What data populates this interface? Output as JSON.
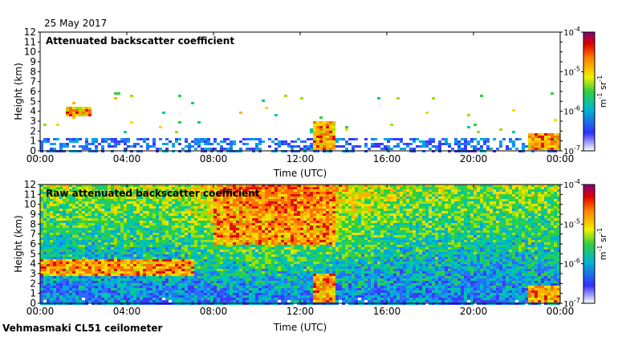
{
  "header": {
    "date": "25 May 2017"
  },
  "footer": {
    "instrument": "Vehmasmaki CL51 ceilometer"
  },
  "chart_data": [
    {
      "type": "heatmap",
      "title": "Attenuated backscatter coefficient",
      "xlabel": "Time (UTC)",
      "ylabel": "Height (km)",
      "xlim": [
        0,
        24
      ],
      "ylim": [
        0,
        12
      ],
      "x_ticks": [
        "00:00",
        "04:00",
        "08:00",
        "12:00",
        "16:00",
        "20:00",
        "00:00"
      ],
      "y_ticks": [
        0,
        1,
        2,
        3,
        4,
        5,
        6,
        7,
        8,
        9,
        10,
        11,
        12
      ],
      "colorbar": {
        "label_base": "m",
        "label_exp1": "-1",
        "label_mid": " sr",
        "label_exp2": "-1",
        "ticks": [
          {
            "base": "10",
            "exp": "-4"
          },
          {
            "base": "10",
            "exp": "-5"
          },
          {
            "base": "10",
            "exp": "-6"
          },
          {
            "base": "10",
            "exp": "-7"
          }
        ],
        "range": [
          1e-07,
          0.0001
        ],
        "scale": "log"
      },
      "features": [
        {
          "name": "boundary-layer",
          "t": [
            0,
            24
          ],
          "h": [
            0,
            1.5
          ],
          "level": "low"
        },
        {
          "name": "cloud-layer-early",
          "t": [
            1.1,
            2.3
          ],
          "h": [
            3.5,
            4.6
          ],
          "level": "high"
        },
        {
          "name": "convective-cloud-noon",
          "t": [
            12.5,
            13.5
          ],
          "h": [
            0.3,
            3.2
          ],
          "level": "high"
        },
        {
          "name": "evening-clouds",
          "t": [
            22.5,
            24
          ],
          "h": [
            0.1,
            1.8
          ],
          "level": "high"
        }
      ]
    },
    {
      "type": "heatmap",
      "title": "Raw attenuated backscatter coefficient",
      "xlabel": "Time (UTC)",
      "ylabel": "Height (km)",
      "xlim": [
        0,
        24
      ],
      "ylim": [
        0,
        12
      ],
      "x_ticks": [
        "00:00",
        "04:00",
        "08:00",
        "12:00",
        "16:00",
        "20:00",
        "00:00"
      ],
      "y_ticks": [
        0,
        1,
        2,
        3,
        4,
        5,
        6,
        7,
        8,
        9,
        10,
        11,
        12
      ],
      "colorbar": {
        "label_base": "m",
        "label_exp1": "-1",
        "label_mid": " sr",
        "label_exp2": "-1",
        "ticks": [
          {
            "base": "10",
            "exp": "-4"
          },
          {
            "base": "10",
            "exp": "-5"
          },
          {
            "base": "10",
            "exp": "-6"
          },
          {
            "base": "10",
            "exp": "-7"
          }
        ],
        "range": [
          1e-07,
          0.0001
        ],
        "scale": "log"
      },
      "features": [
        {
          "name": "noise-field",
          "t": [
            0,
            24
          ],
          "h": [
            0,
            12
          ],
          "level": "mid"
        },
        {
          "name": "daytime-noise-max",
          "t": [
            8,
            13.5
          ],
          "h": [
            6,
            12
          ],
          "level": "high"
        },
        {
          "name": "cloud-layer-morning",
          "t": [
            0,
            7
          ],
          "h": [
            3,
            4.5
          ],
          "level": "high"
        },
        {
          "name": "convective-cloud-noon",
          "t": [
            12.5,
            13.5
          ],
          "h": [
            0.3,
            3.2
          ],
          "level": "high"
        },
        {
          "name": "evening-clouds",
          "t": [
            22.5,
            24
          ],
          "h": [
            0.1,
            1.8
          ],
          "level": "high"
        }
      ]
    }
  ],
  "colors": {
    "axis": "#000000",
    "frame": "#000000",
    "background": "#ffffff"
  }
}
